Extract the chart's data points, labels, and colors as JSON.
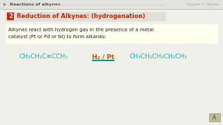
{
  "bg_color": "#f0f0eb",
  "header_bg": "#e2e2de",
  "header_text": "Reactions of alkynes",
  "header_right": "Chapter 4: Alkynes",
  "header_text_color": "#555555",
  "title_number": "2",
  "title_number_bg": "#cc2200",
  "title_number_color": "#ffffff",
  "title_text": "Reduction of Alkynes: (hydrogenation)",
  "title_text_color": "#cc2200",
  "title_box_bg": "#e0e0da",
  "body_bg": "#fffff0",
  "body_text_line1": "Alkynes react with hydrogen gas in the presence of a metal",
  "body_text_line2": "catalyst (Pt or Pd or Ni) to form alkanes:",
  "body_text_color": "#222222",
  "chem_color": "#22aaaa",
  "reagent_color": "#bb5500",
  "reagent_underline_color": "#009988",
  "chem_left": "CH₃CH₂C≡CCH₃",
  "reagent": "H₂ / Pt",
  "chem_right": "CH₃CH₂CH₂CH₂CH₃",
  "footer_box_color": "#bbbb99",
  "line_color": "#aaaaaa"
}
